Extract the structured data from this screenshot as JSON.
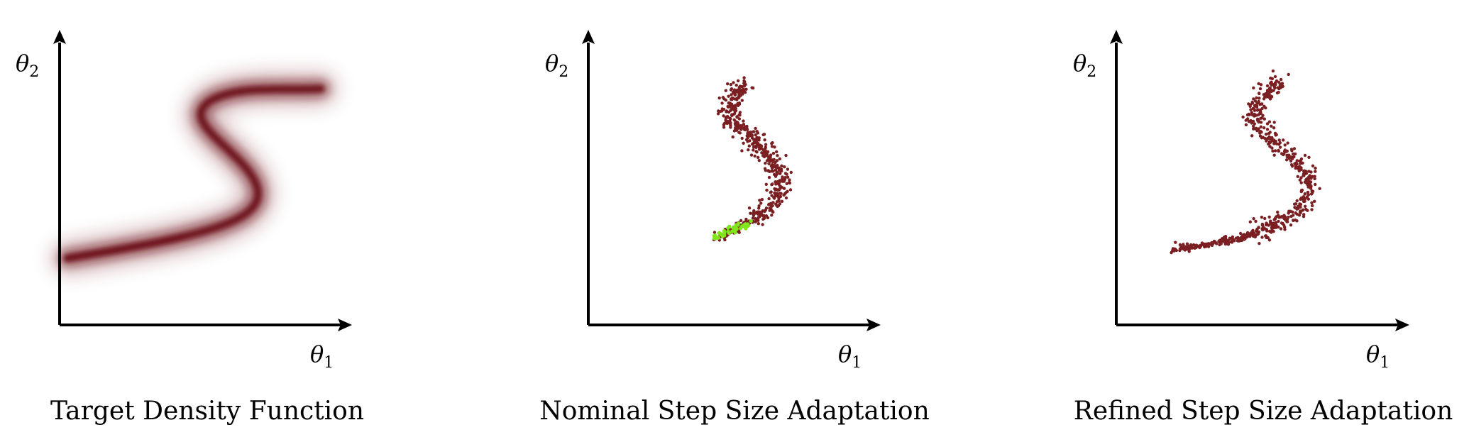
{
  "panels": [
    {
      "id": "target",
      "caption": "Target Density Function",
      "x_label": "θ",
      "x_label_sub": "1",
      "y_label": "θ",
      "y_label_sub": "2",
      "rendering": "density"
    },
    {
      "id": "nominal",
      "caption": "Nominal Step Size Adaptation",
      "x_label": "θ",
      "x_label_sub": "1",
      "y_label": "θ",
      "y_label_sub": "2",
      "rendering": "samples",
      "highlight_region": "lower-left tail"
    },
    {
      "id": "refined",
      "caption": "Refined Step Size Adaptation",
      "x_label": "θ",
      "x_label_sub": "1",
      "y_label": "θ",
      "y_label_sub": "2",
      "rendering": "samples"
    }
  ],
  "colors": {
    "density": "#6b0f12",
    "sample": "#7a1f22",
    "highlight": "#7fe61c",
    "axis": "#000000"
  }
}
